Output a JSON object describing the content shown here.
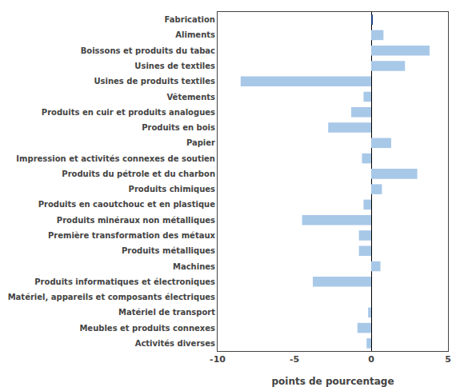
{
  "chart_data": {
    "type": "bar",
    "orientation": "horizontal",
    "categories": [
      "Fabrication",
      "Aliments",
      "Boissons et produits du tabac",
      "Usines de textiles",
      "Usines de produits textiles",
      "Vêtements",
      "Produits en cuir et produits analogues",
      "Produits en bois",
      "Papier",
      "Impression et activités connexes de soutien",
      "Produits du pétrole et du charbon",
      "Produits chimiques",
      "Produits en caoutchouc et en plastique",
      "Produits minéraux non métalliques",
      "Première transformation des métaux",
      "Produits métalliques",
      "Machines",
      "Produits informatiques et électroniques",
      "Matériel, appareils et composants électriques",
      "Matériel de transport",
      "Meubles et produits connexes",
      "Activités diverses"
    ],
    "values": [
      0.1,
      0.8,
      3.8,
      2.2,
      -8.5,
      -0.5,
      -1.3,
      -2.8,
      1.3,
      -0.6,
      3.0,
      0.7,
      -0.5,
      -4.5,
      -0.8,
      -0.8,
      0.6,
      -3.8,
      0.0,
      -0.2,
      -0.9,
      -0.3
    ],
    "colors": [
      "#1f3f7f",
      "#a8c8e8",
      "#a8c8e8",
      "#a8c8e8",
      "#a8c8e8",
      "#a8c8e8",
      "#a8c8e8",
      "#a8c8e8",
      "#a8c8e8",
      "#a8c8e8",
      "#a8c8e8",
      "#a8c8e8",
      "#a8c8e8",
      "#a8c8e8",
      "#a8c8e8",
      "#a8c8e8",
      "#a8c8e8",
      "#a8c8e8",
      "#a8c8e8",
      "#a8c8e8",
      "#a8c8e8",
      "#a8c8e8"
    ],
    "xlabel": "points de pourcentage",
    "xlim": [
      -10,
      5
    ],
    "xticks": [
      -10,
      -5,
      0,
      5
    ],
    "grid": false
  }
}
